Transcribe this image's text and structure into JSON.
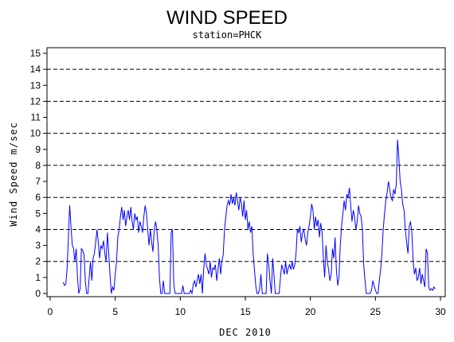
{
  "chart_data": {
    "type": "line",
    "title": "WIND SPEED",
    "subtitle": "station=PHCK",
    "xlabel": "DEC 2010",
    "ylabel": "Wind Speed m/sec",
    "xlim": [
      0,
      30.3
    ],
    "ylim": [
      0,
      15.4
    ],
    "x_ticks": [
      0,
      5,
      10,
      15,
      20,
      25,
      30
    ],
    "y_ticks": [
      0,
      1,
      2,
      3,
      4,
      5,
      6,
      7,
      8,
      9,
      10,
      11,
      12,
      13,
      14,
      15
    ],
    "reference_lines": [
      2,
      4,
      6,
      8,
      10,
      12,
      14
    ],
    "grid": "dashed horizontal reference lines",
    "line_color": "#0000ff",
    "series": [
      {
        "values": [
          [
            1.0,
            0.7
          ],
          [
            1.1,
            0.5
          ],
          [
            1.2,
            0.6
          ],
          [
            1.3,
            1.5
          ],
          [
            1.4,
            3.5
          ],
          [
            1.5,
            5.5
          ],
          [
            1.6,
            4.2
          ],
          [
            1.7,
            3.0
          ],
          [
            1.8,
            2.8
          ],
          [
            1.9,
            2.0
          ],
          [
            2.0,
            2.8
          ],
          [
            2.1,
            1.0
          ],
          [
            2.2,
            0.0
          ],
          [
            2.3,
            0.3
          ],
          [
            2.4,
            2.8
          ],
          [
            2.5,
            2.7
          ],
          [
            2.6,
            2.4
          ],
          [
            2.7,
            0.8
          ],
          [
            2.8,
            0.0
          ],
          [
            2.9,
            0.0
          ],
          [
            3.0,
            1.0
          ],
          [
            3.1,
            2.0
          ],
          [
            3.2,
            0.8
          ],
          [
            3.3,
            2.2
          ],
          [
            3.4,
            2.5
          ],
          [
            3.5,
            3.2
          ],
          [
            3.6,
            4.0
          ],
          [
            3.7,
            3.2
          ],
          [
            3.8,
            2.2
          ],
          [
            3.9,
            3.0
          ],
          [
            4.0,
            2.8
          ],
          [
            4.1,
            3.3
          ],
          [
            4.2,
            2.5
          ],
          [
            4.3,
            2.0
          ],
          [
            4.4,
            3.8
          ],
          [
            4.5,
            2.5
          ],
          [
            4.6,
            1.2
          ],
          [
            4.7,
            0.0
          ],
          [
            4.8,
            0.4
          ],
          [
            4.9,
            0.2
          ],
          [
            5.0,
            1.2
          ],
          [
            5.1,
            2.0
          ],
          [
            5.2,
            3.5
          ],
          [
            5.3,
            4.0
          ],
          [
            5.4,
            4.8
          ],
          [
            5.5,
            5.4
          ],
          [
            5.6,
            4.6
          ],
          [
            5.7,
            5.2
          ],
          [
            5.8,
            4.2
          ],
          [
            5.9,
            4.8
          ],
          [
            6.0,
            5.2
          ],
          [
            6.1,
            4.6
          ],
          [
            6.2,
            5.4
          ],
          [
            6.3,
            4.5
          ],
          [
            6.4,
            4.0
          ],
          [
            6.5,
            5.0
          ],
          [
            6.6,
            4.6
          ],
          [
            6.7,
            4.8
          ],
          [
            6.8,
            3.8
          ],
          [
            6.9,
            4.5
          ],
          [
            7.0,
            4.2
          ],
          [
            7.1,
            3.8
          ],
          [
            7.2,
            4.8
          ],
          [
            7.3,
            5.5
          ],
          [
            7.4,
            5.0
          ],
          [
            7.5,
            4.0
          ],
          [
            7.6,
            3.0
          ],
          [
            7.7,
            4.0
          ],
          [
            7.8,
            3.2
          ],
          [
            7.9,
            2.6
          ],
          [
            8.0,
            4.0
          ],
          [
            8.1,
            4.5
          ],
          [
            8.2,
            4.0
          ],
          [
            8.3,
            3.0
          ],
          [
            8.4,
            1.0
          ],
          [
            8.5,
            0.0
          ],
          [
            8.6,
            0.0
          ],
          [
            8.7,
            0.8
          ],
          [
            8.8,
            0.0
          ],
          [
            8.9,
            0.0
          ],
          [
            9.0,
            0.0
          ],
          [
            9.1,
            0.0
          ],
          [
            9.2,
            0.0
          ],
          [
            9.3,
            3.8
          ],
          [
            9.4,
            4.0
          ],
          [
            9.5,
            0.6
          ],
          [
            9.6,
            0.0
          ],
          [
            9.7,
            0.0
          ],
          [
            9.8,
            0.0
          ],
          [
            9.9,
            0.0
          ],
          [
            10.0,
            0.0
          ],
          [
            10.1,
            0.0
          ],
          [
            10.2,
            0.5
          ],
          [
            10.3,
            0.0
          ],
          [
            10.4,
            0.0
          ],
          [
            10.5,
            0.0
          ],
          [
            10.6,
            0.0
          ],
          [
            10.7,
            0.0
          ],
          [
            10.8,
            0.2
          ],
          [
            10.9,
            0.0
          ],
          [
            11.0,
            0.6
          ],
          [
            11.1,
            0.8
          ],
          [
            11.2,
            0.4
          ],
          [
            11.3,
            0.8
          ],
          [
            11.4,
            1.2
          ],
          [
            11.5,
            0.6
          ],
          [
            11.6,
            1.2
          ],
          [
            11.7,
            0.0
          ],
          [
            11.8,
            1.5
          ],
          [
            11.9,
            2.5
          ],
          [
            12.0,
            1.8
          ],
          [
            12.1,
            1.5
          ],
          [
            12.2,
            1.2
          ],
          [
            12.3,
            2.0
          ],
          [
            12.4,
            1.0
          ],
          [
            12.5,
            1.6
          ],
          [
            12.6,
            1.5
          ],
          [
            12.7,
            1.8
          ],
          [
            12.8,
            0.8
          ],
          [
            12.9,
            1.5
          ],
          [
            13.0,
            2.2
          ],
          [
            13.1,
            1.2
          ],
          [
            13.2,
            2.0
          ],
          [
            13.3,
            2.4
          ],
          [
            13.4,
            4.0
          ],
          [
            13.5,
            4.8
          ],
          [
            13.6,
            5.5
          ],
          [
            13.7,
            5.8
          ],
          [
            13.8,
            5.5
          ],
          [
            13.9,
            6.2
          ],
          [
            14.0,
            5.6
          ],
          [
            14.1,
            6.0
          ],
          [
            14.2,
            5.5
          ],
          [
            14.3,
            6.3
          ],
          [
            14.4,
            5.8
          ],
          [
            14.5,
            5.2
          ],
          [
            14.6,
            6.0
          ],
          [
            14.7,
            5.6
          ],
          [
            14.8,
            4.8
          ],
          [
            14.9,
            5.8
          ],
          [
            15.0,
            4.6
          ],
          [
            15.1,
            5.2
          ],
          [
            15.2,
            4.0
          ],
          [
            15.3,
            4.5
          ],
          [
            15.4,
            3.8
          ],
          [
            15.5,
            4.2
          ],
          [
            15.6,
            2.5
          ],
          [
            15.7,
            1.5
          ],
          [
            15.8,
            0.5
          ],
          [
            15.9,
            0.0
          ],
          [
            16.0,
            0.0
          ],
          [
            16.1,
            0.3
          ],
          [
            16.2,
            1.2
          ],
          [
            16.3,
            0.0
          ],
          [
            16.4,
            0.0
          ],
          [
            16.5,
            0.0
          ],
          [
            16.6,
            0.0
          ],
          [
            16.7,
            2.5
          ],
          [
            16.8,
            1.8
          ],
          [
            16.9,
            0.8
          ],
          [
            17.0,
            0.0
          ],
          [
            17.1,
            2.2
          ],
          [
            17.2,
            1.2
          ],
          [
            17.3,
            0.0
          ],
          [
            17.4,
            0.0
          ],
          [
            17.5,
            0.0
          ],
          [
            17.6,
            0.0
          ],
          [
            17.7,
            1.0
          ],
          [
            17.8,
            1.8
          ],
          [
            17.9,
            1.5
          ],
          [
            18.0,
            1.2
          ],
          [
            18.1,
            2.0
          ],
          [
            18.2,
            1.2
          ],
          [
            18.3,
            1.6
          ],
          [
            18.4,
            1.8
          ],
          [
            18.5,
            1.5
          ],
          [
            18.6,
            2.0
          ],
          [
            18.7,
            1.5
          ],
          [
            18.8,
            1.8
          ],
          [
            18.9,
            2.5
          ],
          [
            19.0,
            4.0
          ],
          [
            19.1,
            3.8
          ],
          [
            19.2,
            4.2
          ],
          [
            19.3,
            3.2
          ],
          [
            19.4,
            3.8
          ],
          [
            19.5,
            4.0
          ],
          [
            19.6,
            3.4
          ],
          [
            19.7,
            3.0
          ],
          [
            19.8,
            3.8
          ],
          [
            19.9,
            4.2
          ],
          [
            20.0,
            4.8
          ],
          [
            20.1,
            5.6
          ],
          [
            20.2,
            5.2
          ],
          [
            20.3,
            4.0
          ],
          [
            20.4,
            4.8
          ],
          [
            20.5,
            4.2
          ],
          [
            20.6,
            4.6
          ],
          [
            20.7,
            3.5
          ],
          [
            20.8,
            4.4
          ],
          [
            20.9,
            3.8
          ],
          [
            21.0,
            2.2
          ],
          [
            21.1,
            1.0
          ],
          [
            21.2,
            3.0
          ],
          [
            21.3,
            2.0
          ],
          [
            21.4,
            1.5
          ],
          [
            21.5,
            0.8
          ],
          [
            21.6,
            1.2
          ],
          [
            21.7,
            2.8
          ],
          [
            21.8,
            2.2
          ],
          [
            21.9,
            3.5
          ],
          [
            22.0,
            1.5
          ],
          [
            22.1,
            0.5
          ],
          [
            22.2,
            1.0
          ],
          [
            22.3,
            3.0
          ],
          [
            22.4,
            4.2
          ],
          [
            22.5,
            5.0
          ],
          [
            22.6,
            5.8
          ],
          [
            22.7,
            5.2
          ],
          [
            22.8,
            6.2
          ],
          [
            22.9,
            6.0
          ],
          [
            23.0,
            6.6
          ],
          [
            23.1,
            5.5
          ],
          [
            23.2,
            4.5
          ],
          [
            23.3,
            5.2
          ],
          [
            23.4,
            4.8
          ],
          [
            23.5,
            4.0
          ],
          [
            23.6,
            4.5
          ],
          [
            23.7,
            5.5
          ],
          [
            23.8,
            5.0
          ],
          [
            23.9,
            4.8
          ],
          [
            24.0,
            4.0
          ],
          [
            24.1,
            1.8
          ],
          [
            24.2,
            0.8
          ],
          [
            24.3,
            0.0
          ],
          [
            24.4,
            0.0
          ],
          [
            24.5,
            0.0
          ],
          [
            24.6,
            0.0
          ],
          [
            24.7,
            0.2
          ],
          [
            24.8,
            0.8
          ],
          [
            24.9,
            0.5
          ],
          [
            25.0,
            0.2
          ],
          [
            25.1,
            0.0
          ],
          [
            25.2,
            0.0
          ],
          [
            25.3,
            0.8
          ],
          [
            25.4,
            1.5
          ],
          [
            25.5,
            2.5
          ],
          [
            25.6,
            4.0
          ],
          [
            25.7,
            5.0
          ],
          [
            25.8,
            5.8
          ],
          [
            25.9,
            6.3
          ],
          [
            26.0,
            7.0
          ],
          [
            26.1,
            6.5
          ],
          [
            26.2,
            6.0
          ],
          [
            26.3,
            5.8
          ],
          [
            26.4,
            6.5
          ],
          [
            26.5,
            6.2
          ],
          [
            26.6,
            6.8
          ],
          [
            26.7,
            9.6
          ],
          [
            26.8,
            8.5
          ],
          [
            26.9,
            7.0
          ],
          [
            27.0,
            6.5
          ],
          [
            27.1,
            5.6
          ],
          [
            27.2,
            5.2
          ],
          [
            27.3,
            4.0
          ],
          [
            27.4,
            3.2
          ],
          [
            27.5,
            2.5
          ],
          [
            27.6,
            4.2
          ],
          [
            27.7,
            4.5
          ],
          [
            27.8,
            3.8
          ],
          [
            27.9,
            2.0
          ],
          [
            28.0,
            1.2
          ],
          [
            28.1,
            1.6
          ],
          [
            28.2,
            0.8
          ],
          [
            28.3,
            1.0
          ],
          [
            28.4,
            1.6
          ],
          [
            28.5,
            0.6
          ],
          [
            28.6,
            1.2
          ],
          [
            28.7,
            0.8
          ],
          [
            28.8,
            0.4
          ],
          [
            28.9,
            2.8
          ],
          [
            29.0,
            2.5
          ],
          [
            29.1,
            0.4
          ],
          [
            29.2,
            0.2
          ],
          [
            29.3,
            0.3
          ],
          [
            29.4,
            0.2
          ],
          [
            29.5,
            0.4
          ],
          [
            29.6,
            0.3
          ]
        ]
      }
    ]
  }
}
